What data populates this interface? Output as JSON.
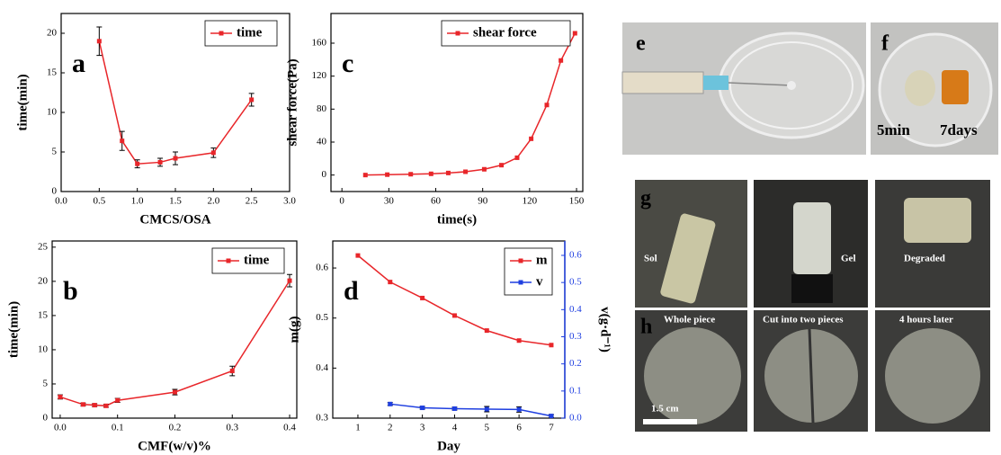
{
  "chart_data": [
    {
      "type": "line",
      "panel": "a",
      "xlabel": "CMCS/OSA",
      "ylabel": "time(min)",
      "xlim": [
        0,
        3
      ],
      "ylim": [
        0,
        22.5
      ],
      "xticks": [
        {
          "value": 0,
          "label": "0.0"
        },
        0.5,
        {
          "value": 1,
          "label": "1.0"
        },
        1.5,
        {
          "value": 2,
          "label": "2.0"
        },
        2.5,
        {
          "value": 3,
          "label": "3.0"
        }
      ],
      "yticks": [
        0,
        5,
        10,
        15,
        20
      ],
      "legend": "upper right",
      "series": [
        {
          "name": "time",
          "color": "#e8262a",
          "x": [
            0.5,
            0.8,
            1.0,
            1.3,
            1.5,
            2.0,
            2.5
          ],
          "values": [
            19,
            6.4,
            3.5,
            3.7,
            4.2,
            4.9,
            11.6
          ],
          "errors": [
            1.8,
            1.2,
            0.5,
            0.5,
            0.8,
            0.6,
            0.8
          ]
        }
      ]
    },
    {
      "type": "line",
      "panel": "c",
      "xlabel": "time(s)",
      "ylabel": "shear force(Pa)",
      "xlim": [
        -7,
        154
      ],
      "ylim": [
        -20,
        196
      ],
      "xticks": [
        0,
        30,
        60,
        90,
        120,
        150
      ],
      "yticks": [
        0,
        40,
        80,
        120,
        160
      ],
      "legend": "upper right",
      "series": [
        {
          "name": "shear force",
          "color": "#e8262a",
          "x": [
            15,
            29,
            44,
            57,
            68,
            79,
            91,
            102,
            112,
            121,
            131,
            140,
            149
          ],
          "values": [
            0,
            0.5,
            1,
            1.5,
            2.5,
            4,
            7,
            12,
            21,
            44,
            85,
            139,
            172
          ]
        }
      ]
    },
    {
      "type": "line",
      "panel": "b",
      "xlabel": "CMF(w/v)%",
      "ylabel": "time(min)",
      "xlim": [
        -0.014,
        0.4125
      ],
      "ylim": [
        0,
        25.9
      ],
      "xticks": [
        {
          "value": 0,
          "label": "0.0"
        },
        0.1,
        0.2,
        0.3,
        0.4
      ],
      "yticks": [
        0,
        5,
        10,
        15,
        20,
        25
      ],
      "legend": "upper right",
      "series": [
        {
          "name": "time",
          "color": "#e8262a",
          "x": [
            0,
            0.04,
            0.06,
            0.08,
            0.1,
            0.2,
            0.3,
            0.4
          ],
          "values": [
            3.1,
            2.0,
            1.9,
            1.8,
            2.6,
            3.8,
            6.9,
            20.1
          ],
          "errors": [
            0.3,
            0.2,
            0.2,
            0.2,
            0.3,
            0.4,
            0.7,
            0.9
          ]
        }
      ]
    },
    {
      "type": "line",
      "panel": "d",
      "xlabel": "Day",
      "ylabel": "m(g)",
      "y2label": "v(g·d⁻¹)",
      "xlim": [
        0.22,
        7.42
      ],
      "ylim": [
        0.3,
        0.654
      ],
      "y2lim": [
        0,
        0.653
      ],
      "xticks": [
        1,
        2,
        3,
        4,
        5,
        6,
        7
      ],
      "yticks": [
        0.3,
        0.4,
        0.5,
        0.6
      ],
      "y2ticks": [
        {
          "value": 0,
          "label": "0.0"
        },
        0.1,
        0.2,
        0.3,
        0.4,
        0.5,
        0.6
      ],
      "legend": "upper right",
      "series": [
        {
          "name": "m",
          "color": "#e8262a",
          "x": [
            1,
            2,
            3,
            4,
            5,
            6,
            7
          ],
          "values": [
            0.625,
            0.572,
            0.54,
            0.505,
            0.475,
            0.455,
            0.446
          ]
        },
        {
          "name": "v",
          "color": "#1f3fe0",
          "axis": "y2",
          "x": [
            2,
            3,
            4,
            5,
            6,
            7
          ],
          "values": [
            0.052,
            0.038,
            0.035,
            0.033,
            0.032,
            0.008
          ],
          "errors": [
            0.005,
            0.005,
            0.005,
            0.01,
            0.01,
            0.005
          ]
        }
      ]
    }
  ],
  "photos": {
    "e": {
      "letter": "e"
    },
    "f": {
      "letter": "f",
      "captions": [
        "5min",
        "7days"
      ]
    },
    "g": {
      "letter": "g",
      "captions": [
        "Sol",
        "Gel",
        "Degraded"
      ]
    },
    "h": {
      "letter": "h",
      "captions": [
        "Whole piece",
        "Cut into two pieces",
        "4 hours later"
      ],
      "scale": "1.5 cm"
    }
  }
}
